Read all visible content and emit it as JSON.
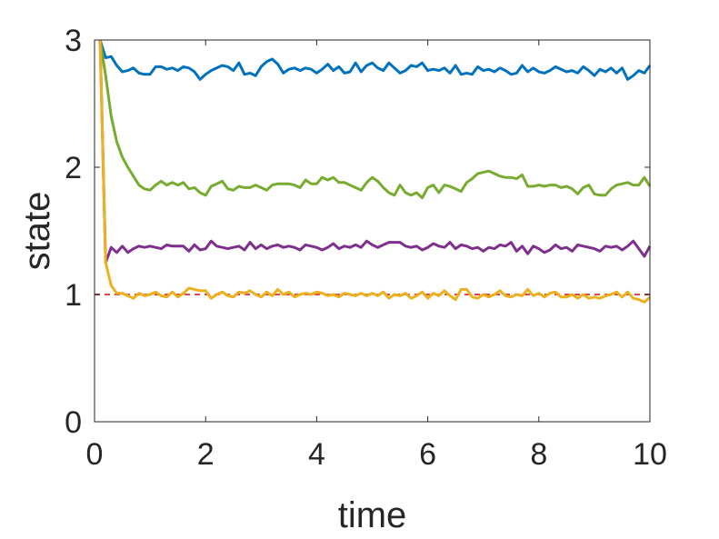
{
  "chart_data": {
    "type": "line",
    "title": "",
    "xlabel": "time",
    "ylabel": "state",
    "xlim": [
      0,
      10
    ],
    "ylim": [
      0,
      3
    ],
    "xticks": [
      0,
      2,
      4,
      6,
      8,
      10
    ],
    "yticks": [
      0,
      1,
      2,
      3
    ],
    "grid": false,
    "legend": "none",
    "x": [
      0.1,
      0.2,
      0.3,
      0.4,
      0.5,
      0.6,
      0.7,
      0.8,
      0.9,
      1.0,
      1.1,
      1.2,
      1.3,
      1.4,
      1.5,
      1.6,
      1.7,
      1.8,
      1.9,
      2.0,
      2.1,
      2.2,
      2.3,
      2.4,
      2.5,
      2.6,
      2.7,
      2.8,
      2.9,
      3.0,
      3.1,
      3.2,
      3.3,
      3.4,
      3.5,
      3.6,
      3.7,
      3.8,
      3.9,
      4.0,
      4.1,
      4.2,
      4.3,
      4.4,
      4.5,
      4.6,
      4.7,
      4.8,
      4.9,
      5.0,
      5.1,
      5.2,
      5.3,
      5.4,
      5.5,
      5.6,
      5.7,
      5.8,
      5.9,
      6.0,
      6.1,
      6.2,
      6.3,
      6.4,
      6.5,
      6.6,
      6.7,
      6.8,
      6.9,
      7.0,
      7.1,
      7.2,
      7.3,
      7.4,
      7.5,
      7.6,
      7.7,
      7.8,
      7.9,
      8.0,
      8.1,
      8.2,
      8.3,
      8.4,
      8.5,
      8.6,
      8.7,
      8.8,
      8.9,
      9.0,
      9.1,
      9.2,
      9.3,
      9.4,
      9.5,
      9.6,
      9.7,
      9.8,
      9.9,
      10.0
    ],
    "series": [
      {
        "color": "#0072BD",
        "values": [
          3.0,
          2.86,
          2.87,
          2.8,
          2.75,
          2.76,
          2.78,
          2.74,
          2.73,
          2.73,
          2.79,
          2.79,
          2.77,
          2.78,
          2.76,
          2.79,
          2.78,
          2.75,
          2.69,
          2.73,
          2.76,
          2.78,
          2.8,
          2.79,
          2.76,
          2.82,
          2.73,
          2.74,
          2.72,
          2.79,
          2.83,
          2.85,
          2.81,
          2.74,
          2.77,
          2.78,
          2.76,
          2.78,
          2.77,
          2.74,
          2.77,
          2.81,
          2.76,
          2.79,
          2.74,
          2.75,
          2.82,
          2.75,
          2.8,
          2.82,
          2.78,
          2.76,
          2.82,
          2.78,
          2.74,
          2.76,
          2.8,
          2.79,
          2.82,
          2.76,
          2.77,
          2.76,
          2.78,
          2.74,
          2.8,
          2.73,
          2.74,
          2.73,
          2.79,
          2.76,
          2.77,
          2.75,
          2.78,
          2.76,
          2.73,
          2.74,
          2.8,
          2.75,
          2.78,
          2.75,
          2.74,
          2.76,
          2.79,
          2.77,
          2.75,
          2.76,
          2.74,
          2.79,
          2.76,
          2.72,
          2.77,
          2.75,
          2.78,
          2.74,
          2.78,
          2.69,
          2.72,
          2.76,
          2.74,
          2.8
        ]
      },
      {
        "color": "#77AC30",
        "values": [
          3.0,
          2.72,
          2.4,
          2.2,
          2.08,
          2.0,
          1.93,
          1.86,
          1.83,
          1.82,
          1.86,
          1.89,
          1.86,
          1.88,
          1.86,
          1.88,
          1.83,
          1.84,
          1.8,
          1.78,
          1.85,
          1.87,
          1.89,
          1.83,
          1.82,
          1.85,
          1.84,
          1.84,
          1.86,
          1.84,
          1.82,
          1.86,
          1.87,
          1.87,
          1.87,
          1.86,
          1.84,
          1.9,
          1.87,
          1.87,
          1.92,
          1.9,
          1.92,
          1.88,
          1.88,
          1.86,
          1.84,
          1.82,
          1.88,
          1.92,
          1.89,
          1.84,
          1.8,
          1.78,
          1.86,
          1.8,
          1.78,
          1.8,
          1.76,
          1.84,
          1.86,
          1.8,
          1.86,
          1.85,
          1.83,
          1.81,
          1.88,
          1.91,
          1.95,
          1.96,
          1.97,
          1.95,
          1.93,
          1.92,
          1.92,
          1.91,
          1.94,
          1.85,
          1.85,
          1.86,
          1.85,
          1.86,
          1.86,
          1.84,
          1.85,
          1.83,
          1.79,
          1.84,
          1.86,
          1.79,
          1.78,
          1.78,
          1.83,
          1.86,
          1.87,
          1.88,
          1.86,
          1.86,
          1.92,
          1.85
        ]
      },
      {
        "color": "#7E2F8E",
        "values": [
          3.0,
          1.25,
          1.37,
          1.33,
          1.38,
          1.33,
          1.36,
          1.38,
          1.37,
          1.38,
          1.37,
          1.36,
          1.39,
          1.38,
          1.38,
          1.38,
          1.34,
          1.39,
          1.35,
          1.36,
          1.42,
          1.38,
          1.37,
          1.36,
          1.37,
          1.38,
          1.35,
          1.41,
          1.36,
          1.39,
          1.36,
          1.38,
          1.39,
          1.37,
          1.38,
          1.37,
          1.35,
          1.39,
          1.38,
          1.37,
          1.35,
          1.37,
          1.4,
          1.36,
          1.38,
          1.37,
          1.39,
          1.37,
          1.42,
          1.39,
          1.37,
          1.39,
          1.41,
          1.41,
          1.41,
          1.38,
          1.37,
          1.38,
          1.35,
          1.37,
          1.4,
          1.38,
          1.37,
          1.41,
          1.36,
          1.39,
          1.38,
          1.36,
          1.37,
          1.34,
          1.37,
          1.36,
          1.39,
          1.38,
          1.41,
          1.34,
          1.38,
          1.32,
          1.38,
          1.36,
          1.33,
          1.35,
          1.39,
          1.36,
          1.37,
          1.34,
          1.39,
          1.38,
          1.37,
          1.36,
          1.34,
          1.38,
          1.37,
          1.38,
          1.35,
          1.38,
          1.42,
          1.36,
          1.3,
          1.38
        ]
      },
      {
        "color": "#EDB120",
        "values": [
          3.0,
          1.25,
          1.07,
          1.01,
          1.01,
          0.99,
          0.97,
          1.01,
          0.99,
          1.0,
          1.02,
          0.99,
          0.98,
          1.02,
          0.98,
          1.01,
          1.05,
          1.04,
          1.03,
          1.03,
          0.97,
          1.0,
          1.02,
          0.99,
          0.98,
          1.02,
          1.01,
          1.03,
          1.0,
          0.98,
          1.02,
          0.99,
          1.04,
          1.0,
          1.02,
          0.98,
          1.0,
          1.01,
          1.0,
          1.02,
          1.01,
          0.99,
          1.0,
          0.98,
          1.01,
          1.0,
          0.99,
          1.01,
          0.99,
          1.01,
          0.99,
          1.02,
          0.97,
          1.0,
          0.99,
          1.01,
          0.97,
          0.99,
          1.02,
          0.97,
          1.01,
          0.99,
          1.03,
          0.99,
          0.96,
          1.04,
          1.04,
          0.98,
          0.97,
          1.0,
          0.98,
          1.0,
          1.03,
          0.99,
          0.98,
          1.0,
          0.99,
          1.04,
          0.99,
          1.01,
          0.98,
          1.01,
          1.02,
          0.98,
          0.98,
          1.0,
          0.97,
          1.0,
          0.97,
          0.98,
          0.97,
          0.99,
          1.0,
          1.02,
          0.98,
          1.02,
          0.97,
          0.96,
          0.94,
          0.98
        ]
      }
    ],
    "reference_line": {
      "y": 1,
      "color": "#E8434A",
      "style": "dashed"
    }
  }
}
